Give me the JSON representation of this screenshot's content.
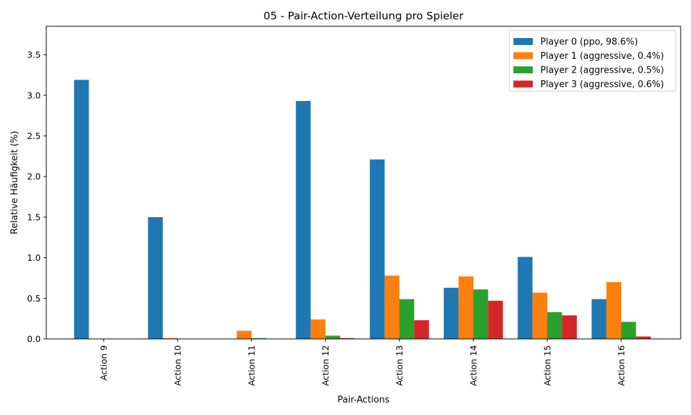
{
  "chart_data": {
    "type": "bar",
    "title": "05 - Pair-Action-Verteilung pro Spieler",
    "xlabel": "Pair-Actions",
    "ylabel": "Relative Häufigkeit (%)",
    "ylim": [
      0,
      3.85
    ],
    "yticks": [
      "0.0",
      "0.5",
      "1.0",
      "1.5",
      "2.0",
      "2.5",
      "3.0",
      "3.5"
    ],
    "categories": [
      "Action 9",
      "Action 10",
      "Action 11",
      "Action 12",
      "Action 13",
      "Action 14",
      "Action 15",
      "Action 16"
    ],
    "series": [
      {
        "name": "Player 0 (ppo, 98.6%)",
        "color": "#1f77b4",
        "values": [
          3.19,
          1.5,
          0.0,
          2.93,
          2.21,
          0.63,
          1.01,
          0.49
        ]
      },
      {
        "name": "Player 1 (aggressive, 0.4%)",
        "color": "#ff7f0e",
        "values": [
          0.0,
          0.01,
          0.1,
          0.24,
          0.78,
          0.77,
          0.57,
          0.7
        ]
      },
      {
        "name": "Player 2 (aggressive, 0.5%)",
        "color": "#2ca02c",
        "values": [
          0.0,
          0.0,
          0.01,
          0.04,
          0.49,
          0.61,
          0.33,
          0.21
        ]
      },
      {
        "name": "Player 3 (aggressive, 0.6%)",
        "color": "#d62728",
        "values": [
          0.0,
          0.0,
          0.0,
          0.01,
          0.23,
          0.47,
          0.29,
          0.03
        ]
      }
    ],
    "grid": false,
    "legend_position": "top-right"
  }
}
